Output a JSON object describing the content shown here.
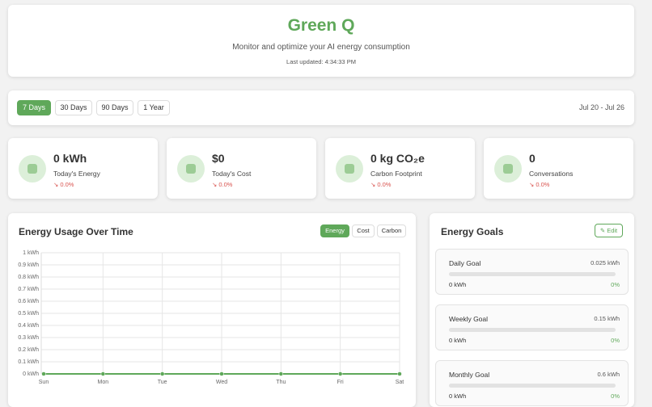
{
  "header": {
    "title": "Green Q",
    "subtitle": "Monitor and optimize your AI energy consumption",
    "updated": "Last updated: 4:34:33 PM"
  },
  "range": {
    "options": [
      "7 Days",
      "30 Days",
      "90 Days",
      "1 Year"
    ],
    "active": 0,
    "dates": "Jul 20 - Jul 26"
  },
  "stats": [
    {
      "value": "0 kWh",
      "label": "Today's Energy",
      "change": "↘ 0.0%"
    },
    {
      "value": "$0",
      "label": "Today's Cost",
      "change": "↘ 0.0%"
    },
    {
      "value": "0 kg CO₂e",
      "label": "Carbon Footprint",
      "change": "↘ 0.0%"
    },
    {
      "value": "0",
      "label": "Conversations",
      "change": "↘ 0.0%"
    }
  ],
  "chart_tabs": {
    "options": [
      "Energy",
      "Cost",
      "Carbon"
    ],
    "active": 0
  },
  "chart_data": {
    "type": "line",
    "title": "Energy Usage Over Time",
    "categories": [
      "Sun",
      "Mon",
      "Tue",
      "Wed",
      "Thu",
      "Fri",
      "Sat"
    ],
    "values": [
      0,
      0,
      0,
      0,
      0,
      0,
      0
    ],
    "color": "#5fa85a",
    "ylim": [
      0,
      1
    ],
    "yticks": [
      {
        "value": 0,
        "label": "0 kWh"
      },
      {
        "value": 0.1,
        "label": "0.1 kWh"
      },
      {
        "value": 0.2,
        "label": "0.2 kWh"
      },
      {
        "value": 0.3,
        "label": "0.3 kWh"
      },
      {
        "value": 0.4,
        "label": "0.4 kWh"
      },
      {
        "value": 0.5,
        "label": "0.5 kWh"
      },
      {
        "value": 0.6,
        "label": "0.6 kWh"
      },
      {
        "value": 0.7,
        "label": "0.7 kWh"
      },
      {
        "value": 0.8,
        "label": "0.8 kWh"
      },
      {
        "value": 0.9,
        "label": "0.9 kWh"
      },
      {
        "value": 1,
        "label": "1 kWh"
      }
    ],
    "grid": true
  },
  "goals": {
    "title": "Energy Goals",
    "edit": "✎ Edit",
    "items": [
      {
        "name": "Daily Goal",
        "target": "0.025 kWh",
        "current": "0 kWh",
        "percent": "0%"
      },
      {
        "name": "Weekly Goal",
        "target": "0.15 kWh",
        "current": "0 kWh",
        "percent": "0%"
      },
      {
        "name": "Monthly Goal",
        "target": "0.6 kWh",
        "current": "0 kWh",
        "percent": "0%"
      }
    ]
  }
}
